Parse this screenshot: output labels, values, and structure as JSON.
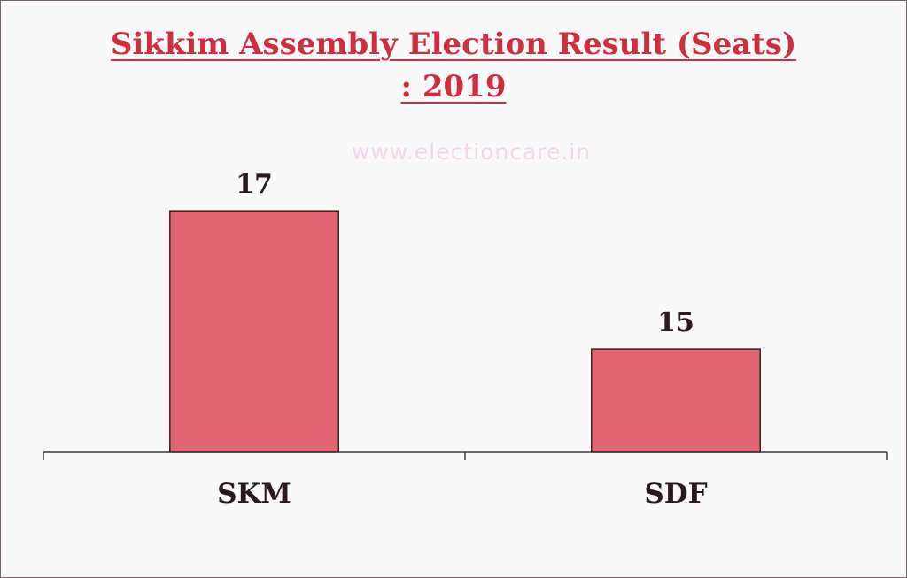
{
  "chart_data": {
    "type": "bar",
    "title_line1": "Sikkim Assembly Election Result (Seats)",
    "title_line2": ": 2019",
    "watermark": "www.electioncare.in",
    "categories": [
      "SKM",
      "SDF"
    ],
    "values": [
      17,
      15
    ],
    "xlabel": "",
    "ylabel": "",
    "ylim": [
      13.5,
      17.9
    ],
    "grid": false,
    "data_labels": true,
    "bar_color": "#e26671",
    "bar_outline": "#3a1f24",
    "title_color": "#cf2e3f"
  }
}
